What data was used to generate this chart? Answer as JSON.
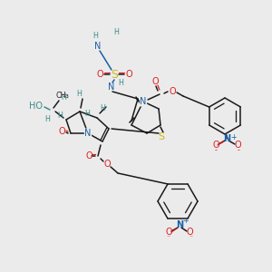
{
  "bg_color": "#ebebeb",
  "C": "#1a1a1a",
  "N": "#1a5fa8",
  "O": "#e02020",
  "S": "#c8b820",
  "H": "#3a8a8a"
}
